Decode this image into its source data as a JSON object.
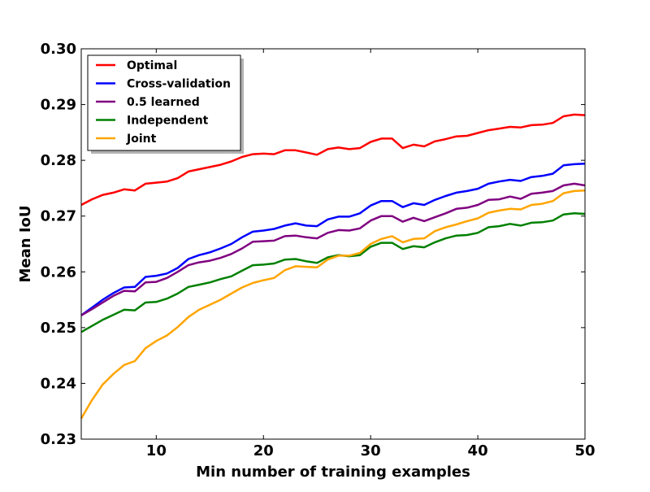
{
  "chart_data": {
    "type": "line",
    "title": "",
    "xlabel": "Min number of training examples",
    "ylabel": "Mean IoU",
    "xlim": [
      3,
      50
    ],
    "ylim": [
      0.23,
      0.3
    ],
    "xticks": [
      10,
      20,
      30,
      40,
      50
    ],
    "xtick_labels": [
      "10",
      "20",
      "30",
      "40",
      "50"
    ],
    "yticks": [
      0.23,
      0.24,
      0.25,
      0.26,
      0.27,
      0.28,
      0.29,
      0.3
    ],
    "ytick_labels": [
      "0.23",
      "0.24",
      "0.25",
      "0.26",
      "0.27",
      "0.28",
      "0.29",
      "0.30"
    ],
    "grid": false,
    "legend_position": "top-left",
    "x": [
      3,
      4,
      5,
      6,
      7,
      8,
      9,
      10,
      11,
      12,
      13,
      14,
      15,
      16,
      17,
      18,
      19,
      20,
      21,
      22,
      23,
      24,
      25,
      26,
      27,
      28,
      29,
      30,
      31,
      32,
      33,
      34,
      35,
      36,
      37,
      38,
      39,
      40,
      41,
      42,
      43,
      44,
      45,
      46,
      47,
      48,
      49,
      50
    ],
    "series": [
      {
        "name": "Optimal",
        "color": "#ff0000",
        "values": [
          0.272,
          0.273,
          0.2738,
          0.2742,
          0.2748,
          0.2746,
          0.2758,
          0.276,
          0.2762,
          0.2768,
          0.278,
          0.2784,
          0.2788,
          0.2792,
          0.2798,
          0.2806,
          0.2811,
          0.2812,
          0.2811,
          0.2818,
          0.2818,
          0.2814,
          0.281,
          0.282,
          0.2823,
          0.282,
          0.2822,
          0.2833,
          0.2839,
          0.2839,
          0.2822,
          0.2828,
          0.2825,
          0.2834,
          0.2838,
          0.2843,
          0.2844,
          0.2849,
          0.2854,
          0.2857,
          0.286,
          0.2859,
          0.2863,
          0.2864,
          0.2867,
          0.2879,
          0.2882,
          0.2881
        ]
      },
      {
        "name": "Cross-validation",
        "color": "#0000ff",
        "values": [
          0.2522,
          0.2536,
          0.255,
          0.2562,
          0.2572,
          0.2573,
          0.2591,
          0.2593,
          0.2597,
          0.2607,
          0.2623,
          0.263,
          0.2635,
          0.2642,
          0.265,
          0.2662,
          0.2672,
          0.2674,
          0.2677,
          0.2683,
          0.2687,
          0.2683,
          0.2682,
          0.2694,
          0.2699,
          0.2699,
          0.2705,
          0.2719,
          0.2727,
          0.2727,
          0.2716,
          0.2723,
          0.272,
          0.2729,
          0.2736,
          0.2742,
          0.2745,
          0.2749,
          0.2758,
          0.2762,
          0.2765,
          0.2763,
          0.277,
          0.2772,
          0.2776,
          0.2791,
          0.2793,
          0.2794
        ]
      },
      {
        "name": "0.5 learned",
        "color": "#800080",
        "values": [
          0.2522,
          0.2533,
          0.2545,
          0.2557,
          0.2566,
          0.2565,
          0.2581,
          0.2582,
          0.2589,
          0.26,
          0.2612,
          0.2617,
          0.262,
          0.2625,
          0.2632,
          0.2642,
          0.2654,
          0.2655,
          0.2656,
          0.2664,
          0.2665,
          0.2662,
          0.266,
          0.267,
          0.2675,
          0.2674,
          0.2678,
          0.2692,
          0.27,
          0.27,
          0.269,
          0.2697,
          0.2691,
          0.2698,
          0.2705,
          0.2713,
          0.2715,
          0.272,
          0.2729,
          0.273,
          0.2735,
          0.2731,
          0.274,
          0.2742,
          0.2745,
          0.2755,
          0.2758,
          0.2755
        ]
      },
      {
        "name": "Independent",
        "color": "#008000",
        "values": [
          0.2492,
          0.2503,
          0.2514,
          0.2523,
          0.2532,
          0.2531,
          0.2545,
          0.2546,
          0.2552,
          0.2561,
          0.2573,
          0.2577,
          0.2581,
          0.2587,
          0.2592,
          0.2602,
          0.2612,
          0.2613,
          0.2615,
          0.2622,
          0.2623,
          0.2619,
          0.2616,
          0.2626,
          0.263,
          0.2628,
          0.263,
          0.2645,
          0.2652,
          0.2652,
          0.2641,
          0.2646,
          0.2644,
          0.2653,
          0.266,
          0.2665,
          0.2666,
          0.267,
          0.268,
          0.2682,
          0.2686,
          0.2683,
          0.2688,
          0.2689,
          0.2692,
          0.2703,
          0.2705,
          0.2704
        ]
      },
      {
        "name": "Joint",
        "color": "#ffa500",
        "values": [
          0.2337,
          0.237,
          0.2398,
          0.2417,
          0.2433,
          0.244,
          0.2463,
          0.2476,
          0.2486,
          0.2501,
          0.2519,
          0.2532,
          0.2541,
          0.255,
          0.2561,
          0.2572,
          0.258,
          0.2585,
          0.2589,
          0.2603,
          0.261,
          0.2609,
          0.2608,
          0.2622,
          0.2629,
          0.2629,
          0.2634,
          0.265,
          0.2659,
          0.2664,
          0.2653,
          0.2659,
          0.266,
          0.2673,
          0.268,
          0.2685,
          0.2691,
          0.2696,
          0.2706,
          0.271,
          0.2713,
          0.2712,
          0.272,
          0.2722,
          0.2727,
          0.2741,
          0.2745,
          0.2746
        ]
      }
    ]
  }
}
